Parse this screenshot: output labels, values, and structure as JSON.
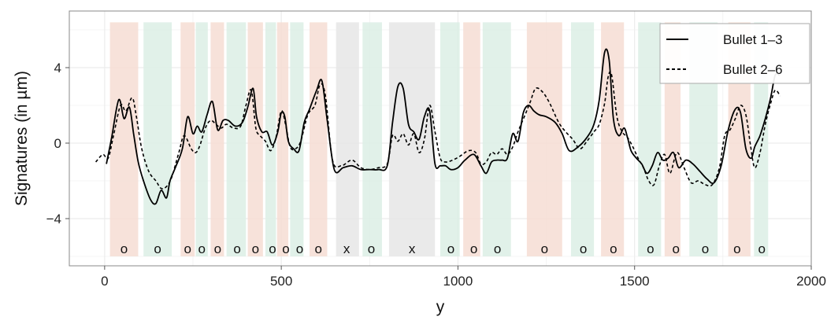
{
  "chart_data": {
    "type": "line",
    "xlabel": "y",
    "ylabel": "Signatures (in µm)",
    "xlim": [
      -100,
      2000
    ],
    "ylim": [
      -6.5,
      7
    ],
    "x_ticks": [
      0,
      500,
      1000,
      1500,
      2000
    ],
    "y_ticks": [
      -4,
      0,
      4
    ],
    "x_tick_labels": [
      "0",
      "500",
      "1000",
      "1500",
      "2000"
    ],
    "y_tick_labels": [
      "−4",
      "0",
      "4"
    ],
    "grid": true,
    "legend_position": "top-right",
    "colors": {
      "match_region": "#f6ddd4",
      "nonmatch_region": "#dcefe5",
      "excluded_region": "#e6e6e6",
      "line": "#000000",
      "panel_border": "#888888",
      "grid": "#ececec"
    },
    "bands_y_range": [
      -6.0,
      6.4
    ],
    "bands": [
      {
        "x0": 15,
        "x1": 95,
        "type": "match",
        "label": "o",
        "label_x": 55
      },
      {
        "x0": 110,
        "x1": 190,
        "type": "nonmatch",
        "label": "o",
        "label_x": 150
      },
      {
        "x0": 215,
        "x1": 255,
        "type": "match",
        "label": "o",
        "label_x": 235
      },
      {
        "x0": 258,
        "x1": 292,
        "type": "nonmatch",
        "label": "o",
        "label_x": 275
      },
      {
        "x0": 300,
        "x1": 338,
        "type": "match",
        "label": "o",
        "label_x": 320
      },
      {
        "x0": 345,
        "x1": 400,
        "type": "nonmatch",
        "label": "o",
        "label_x": 375
      },
      {
        "x0": 405,
        "x1": 448,
        "type": "match",
        "label": "o",
        "label_x": 427
      },
      {
        "x0": 455,
        "x1": 485,
        "type": "nonmatch",
        "label": "o",
        "label_x": 475
      },
      {
        "x0": 488,
        "x1": 520,
        "type": "match",
        "label": "o",
        "label_x": 513
      },
      {
        "x0": 525,
        "x1": 563,
        "type": "nonmatch",
        "label": "o",
        "label_x": 552
      },
      {
        "x0": 580,
        "x1": 630,
        "type": "match",
        "label": "o",
        "label_x": 605
      },
      {
        "x0": 655,
        "x1": 720,
        "type": "excluded",
        "label": "x",
        "label_x": 685
      },
      {
        "x0": 730,
        "x1": 785,
        "type": "nonmatch",
        "label": "o",
        "label_x": 755
      },
      {
        "x0": 805,
        "x1": 935,
        "type": "excluded",
        "label": "x",
        "label_x": 870
      },
      {
        "x0": 950,
        "x1": 1005,
        "type": "nonmatch",
        "label": "o",
        "label_x": 980
      },
      {
        "x0": 1015,
        "x1": 1063,
        "type": "match",
        "label": "o",
        "label_x": 1045
      },
      {
        "x0": 1070,
        "x1": 1150,
        "type": "nonmatch",
        "label": "o",
        "label_x": 1112
      },
      {
        "x0": 1195,
        "x1": 1295,
        "type": "match",
        "label": "o",
        "label_x": 1245
      },
      {
        "x0": 1320,
        "x1": 1385,
        "type": "nonmatch",
        "label": "o",
        "label_x": 1355
      },
      {
        "x0": 1405,
        "x1": 1470,
        "type": "match",
        "label": "o",
        "label_x": 1440
      },
      {
        "x0": 1510,
        "x1": 1575,
        "type": "nonmatch",
        "label": "o",
        "label_x": 1545
      },
      {
        "x0": 1585,
        "x1": 1630,
        "type": "match",
        "label": "o",
        "label_x": 1617
      },
      {
        "x0": 1655,
        "x1": 1735,
        "type": "nonmatch",
        "label": "o",
        "label_x": 1700
      },
      {
        "x0": 1765,
        "x1": 1828,
        "type": "match",
        "label": "o",
        "label_x": 1790
      },
      {
        "x0": 1838,
        "x1": 1878,
        "type": "nonmatch",
        "label": "o",
        "label_x": 1860
      }
    ],
    "series": [
      {
        "name": "Bullet 1–3",
        "style": "solid",
        "x": [
          5,
          20,
          40,
          55,
          70,
          82,
          95,
          110,
          130,
          145,
          160,
          175,
          185,
          200,
          220,
          235,
          250,
          262,
          275,
          290,
          305,
          320,
          335,
          350,
          370,
          390,
          405,
          420,
          430,
          445,
          460,
          475,
          490,
          500,
          510,
          520,
          535,
          550,
          565,
          580,
          600,
          615,
          630,
          650,
          675,
          700,
          725,
          750,
          775,
          800,
          815,
          830,
          845,
          860,
          875,
          890,
          905,
          920,
          935,
          950,
          965,
          980,
          1000,
          1020,
          1045,
          1065,
          1080,
          1095,
          1110,
          1125,
          1140,
          1155,
          1170,
          1185,
          1200,
          1215,
          1230,
          1250,
          1275,
          1295,
          1315,
          1340,
          1365,
          1385,
          1400,
          1415,
          1428,
          1440,
          1455,
          1470,
          1480,
          1490,
          1505,
          1520,
          1535,
          1550,
          1565,
          1580,
          1595,
          1610,
          1625,
          1645,
          1665,
          1685,
          1705,
          1725,
          1745,
          1765,
          1785,
          1800,
          1815,
          1830,
          1840,
          1855,
          1870,
          1885,
          1898,
          1910
        ],
        "y": [
          -1.1,
          0.3,
          2.3,
          1.3,
          1.9,
          0.5,
          -1.0,
          -2.0,
          -3.0,
          -3.2,
          -2.5,
          -2.9,
          -2.0,
          -1.3,
          -0.3,
          1.4,
          0.5,
          0.9,
          0.6,
          1.5,
          2.2,
          0.7,
          1.2,
          1.2,
          0.9,
          1.1,
          1.9,
          2.9,
          1.4,
          0.6,
          0.6,
          -0.1,
          0.6,
          1.6,
          1.4,
          0.1,
          -0.3,
          -0.4,
          1.1,
          1.8,
          2.8,
          3.3,
          1.2,
          -1.4,
          -1.3,
          -1.2,
          -1.4,
          -1.4,
          -1.4,
          -1.2,
          1.1,
          3.0,
          2.9,
          1.0,
          0.6,
          0.2,
          1.4,
          1.7,
          -1.1,
          -1.2,
          -1.2,
          -1.4,
          -1.3,
          -0.9,
          -0.6,
          -1.2,
          -1.6,
          -1.0,
          -0.9,
          -0.9,
          -0.8,
          0.5,
          0.1,
          1.6,
          2.0,
          1.7,
          1.5,
          1.4,
          1.1,
          0.5,
          -0.4,
          -0.2,
          0.3,
          1.0,
          2.3,
          4.8,
          4.4,
          1.3,
          0.4,
          0.8,
          0.3,
          -0.4,
          -0.8,
          -1.1,
          -1.6,
          -1.2,
          -0.5,
          -0.9,
          -0.8,
          -0.5,
          -1.3,
          -0.9,
          -1.1,
          -1.5,
          -1.9,
          -2.1,
          -1.2,
          0.7,
          1.8,
          1.6,
          -0.3,
          -0.8,
          -0.2,
          0.4,
          1.3,
          2.4,
          3.6,
          3.6
        ]
      },
      {
        "name": "Bullet 2–6",
        "style": "dashed",
        "x": [
          -25,
          -5,
          10,
          25,
          45,
          60,
          78,
          90,
          105,
          125,
          145,
          160,
          175,
          190,
          210,
          225,
          245,
          258,
          270,
          285,
          300,
          315,
          330,
          345,
          365,
          385,
          400,
          415,
          428,
          440,
          455,
          470,
          485,
          500,
          512,
          525,
          540,
          555,
          575,
          595,
          610,
          625,
          645,
          670,
          700,
          725,
          750,
          775,
          800,
          815,
          830,
          845,
          860,
          875,
          890,
          905,
          920,
          935,
          950,
          965,
          985,
          1005,
          1030,
          1050,
          1065,
          1080,
          1095,
          1110,
          1125,
          1140,
          1155,
          1170,
          1190,
          1205,
          1220,
          1240,
          1260,
          1285,
          1305,
          1325,
          1345,
          1365,
          1385,
          1400,
          1415,
          1425,
          1435,
          1450,
          1465,
          1480,
          1495,
          1510,
          1525,
          1540,
          1555,
          1570,
          1585,
          1600,
          1620,
          1640,
          1660,
          1680,
          1700,
          1720,
          1740,
          1755,
          1770,
          1785,
          1800,
          1815,
          1828,
          1840,
          1855,
          1870,
          1885,
          1898,
          1912
        ],
        "y": [
          -1.0,
          -0.6,
          -0.8,
          0.4,
          2.0,
          1.7,
          2.4,
          1.4,
          -0.3,
          -1.5,
          -2.0,
          -2.4,
          -2.3,
          -1.8,
          -0.5,
          0.4,
          -0.3,
          -0.5,
          -0.1,
          0.8,
          1.2,
          1.0,
          0.8,
          1.0,
          0.8,
          0.9,
          2.0,
          2.8,
          0.8,
          0.4,
          0.1,
          -0.4,
          0.3,
          1.7,
          1.0,
          -0.2,
          -0.3,
          0.1,
          1.5,
          2.0,
          3.1,
          2.5,
          -0.9,
          -1.2,
          -0.9,
          -1.3,
          -1.4,
          -1.3,
          -1.1,
          0.4,
          0.1,
          0.5,
          -0.1,
          0.5,
          -0.5,
          0.2,
          2.0,
          0.6,
          -0.8,
          -1.0,
          -0.9,
          -0.7,
          -0.4,
          -0.5,
          -1.1,
          -1.0,
          -0.5,
          -0.6,
          -0.3,
          -0.6,
          -0.2,
          0.6,
          1.5,
          2.2,
          2.9,
          2.7,
          2.1,
          1.1,
          0.6,
          0.2,
          -0.3,
          0.1,
          0.6,
          1.0,
          2.1,
          3.5,
          3.6,
          1.4,
          0.6,
          0.3,
          -0.2,
          -0.8,
          -1.3,
          -2.0,
          -2.2,
          -1.2,
          -0.6,
          -1.6,
          -0.5,
          -1.3,
          -2.1,
          -2.0,
          -2.2,
          -2.2,
          -1.3,
          0.4,
          0.7,
          1.3,
          2.0,
          1.5,
          -0.1,
          -1.3,
          -0.5,
          1.0,
          2.1,
          2.8,
          2.5
        ]
      }
    ]
  }
}
